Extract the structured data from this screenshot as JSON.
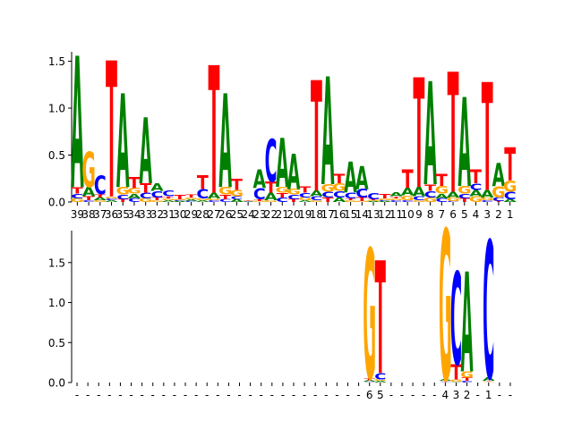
{
  "colors": {
    "A": "#008000",
    "C": "#0000ff",
    "G": "#ffa500",
    "T": "#ff0000"
  },
  "chart_data": [
    {
      "type": "sequence-logo",
      "title": "",
      "xlabel": "",
      "ylabel": "",
      "ylim": [
        0,
        1.6
      ],
      "yticks": [
        "0.0",
        "0.5",
        "1.0",
        "1.5"
      ],
      "xtick_labels": [
        "39",
        "38",
        "37",
        "36",
        "35",
        "34",
        "33",
        "32",
        "31",
        "30",
        "29",
        "28",
        "27",
        "26",
        "25",
        "24",
        "23",
        "22",
        "21",
        "20",
        "19",
        "18",
        "17",
        "16",
        "15",
        "14",
        "13",
        "12",
        "11",
        "10",
        "9",
        "8",
        "7",
        "6",
        "5",
        "4",
        "3",
        "2",
        "1"
      ],
      "positions": [
        {
          "A": 1.4,
          "C": 0.05,
          "G": 0.04,
          "T": 0.07
        },
        {
          "A": 0.1,
          "C": 0.02,
          "G": 0.38,
          "T": 0.04
        },
        {
          "A": 0.03,
          "C": 0.2,
          "G": 0.02,
          "T": 0.03
        },
        {
          "A": 0.02,
          "C": 0.02,
          "G": 0.02,
          "T": 1.45
        },
        {
          "A": 1.0,
          "C": 0.05,
          "G": 0.08,
          "T": 0.03
        },
        {
          "A": 0.05,
          "C": 0.04,
          "G": 0.06,
          "T": 0.12
        },
        {
          "A": 0.7,
          "C": 0.06,
          "G": 0.04,
          "T": 0.1
        },
        {
          "A": 0.08,
          "C": 0.07,
          "G": 0.02,
          "T": 0.03
        },
        {
          "A": 0.02,
          "C": 0.06,
          "G": 0.02,
          "T": 0.02
        },
        {
          "A": 0.01,
          "C": 0.01,
          "G": 0.01,
          "T": 0.05
        },
        {
          "A": 0.02,
          "C": 0.01,
          "G": 0.02,
          "T": 0.03
        },
        {
          "A": 0.02,
          "C": 0.1,
          "G": 0.02,
          "T": 0.15
        },
        {
          "A": 0.06,
          "C": 0.02,
          "G": 0.02,
          "T": 1.36
        },
        {
          "A": 1.0,
          "C": 0.03,
          "G": 0.08,
          "T": 0.05
        },
        {
          "A": 0.03,
          "C": 0.03,
          "G": 0.07,
          "T": 0.12
        },
        {
          "A": 0.005,
          "C": 0.005,
          "G": 0.005,
          "T": 0.005
        },
        {
          "A": 0.2,
          "C": 0.12,
          "G": 0.01,
          "T": 0.02
        },
        {
          "A": 0.08,
          "C": 0.45,
          "G": 0.02,
          "T": 0.12
        },
        {
          "A": 0.52,
          "C": 0.05,
          "G": 0.06,
          "T": 0.05
        },
        {
          "A": 0.38,
          "C": 0.05,
          "G": 0.06,
          "T": 0.03
        },
        {
          "A": 0.02,
          "C": 0.05,
          "G": 0.03,
          "T": 0.07
        },
        {
          "A": 0.06,
          "C": 0.04,
          "G": 0.02,
          "T": 1.18
        },
        {
          "A": 1.15,
          "C": 0.06,
          "G": 0.08,
          "T": 0.05
        },
        {
          "A": 0.05,
          "C": 0.07,
          "G": 0.08,
          "T": 0.1
        },
        {
          "A": 0.33,
          "C": 0.06,
          "G": 0.02,
          "T": 0.02
        },
        {
          "A": 0.25,
          "C": 0.09,
          "G": 0.01,
          "T": 0.04
        },
        {
          "A": 0.01,
          "C": 0.07,
          "G": 0.01,
          "T": 0.01
        },
        {
          "A": 0.01,
          "C": 0.01,
          "G": 0.02,
          "T": 0.05
        },
        {
          "A": 0.04,
          "C": 0.02,
          "G": 0.02,
          "T": 0.02
        },
        {
          "A": 0.08,
          "C": 0.02,
          "G": 0.05,
          "T": 0.2
        },
        {
          "A": 0.1,
          "C": 0.04,
          "G": 0.02,
          "T": 1.17
        },
        {
          "A": 1.1,
          "C": 0.07,
          "G": 0.05,
          "T": 0.07
        },
        {
          "A": 0.05,
          "C": 0.04,
          "G": 0.08,
          "T": 0.13
        },
        {
          "A": 0.06,
          "C": 0.01,
          "G": 0.04,
          "T": 1.28
        },
        {
          "A": 0.95,
          "C": 0.05,
          "G": 0.08,
          "T": 0.04
        },
        {
          "A": 0.07,
          "C": 0.07,
          "G": 0.06,
          "T": 0.15
        },
        {
          "A": 0.08,
          "C": 0.02,
          "G": 0.03,
          "T": 1.15
        },
        {
          "A": 0.25,
          "C": 0.04,
          "G": 0.12,
          "T": 0.01
        },
        {
          "A": 0.03,
          "C": 0.08,
          "G": 0.12,
          "T": 0.35
        }
      ]
    },
    {
      "type": "sequence-logo",
      "title": "",
      "xlabel": "",
      "ylabel": "",
      "ylim": [
        0,
        1.9
      ],
      "yticks": [
        "0.0",
        "0.5",
        "1.0",
        "1.5"
      ],
      "xtick_labels": [
        "-",
        "-",
        "-",
        "-",
        "-",
        "-",
        "-",
        "-",
        "-",
        "-",
        "-",
        "-",
        "-",
        "-",
        "-",
        "-",
        "-",
        "-",
        "-",
        "-",
        "-",
        "-",
        "-",
        "-",
        "-",
        "-",
        "-",
        "6",
        "5",
        "-",
        "-",
        "-",
        "-",
        "-",
        "4",
        "3",
        "2",
        "-",
        "1",
        "-",
        "-"
      ],
      "positions": [
        {
          "A": 0,
          "C": 0,
          "G": 0,
          "T": 0
        },
        {
          "A": 0,
          "C": 0,
          "G": 0,
          "T": 0
        },
        {
          "A": 0,
          "C": 0,
          "G": 0,
          "T": 0
        },
        {
          "A": 0,
          "C": 0,
          "G": 0,
          "T": 0
        },
        {
          "A": 0,
          "C": 0,
          "G": 0,
          "T": 0
        },
        {
          "A": 0,
          "C": 0,
          "G": 0,
          "T": 0
        },
        {
          "A": 0,
          "C": 0,
          "G": 0,
          "T": 0
        },
        {
          "A": 0,
          "C": 0,
          "G": 0,
          "T": 0
        },
        {
          "A": 0,
          "C": 0,
          "G": 0,
          "T": 0
        },
        {
          "A": 0,
          "C": 0,
          "G": 0,
          "T": 0
        },
        {
          "A": 0,
          "C": 0,
          "G": 0,
          "T": 0
        },
        {
          "A": 0,
          "C": 0,
          "G": 0,
          "T": 0
        },
        {
          "A": 0,
          "C": 0,
          "G": 0,
          "T": 0
        },
        {
          "A": 0,
          "C": 0,
          "G": 0,
          "T": 0
        },
        {
          "A": 0,
          "C": 0,
          "G": 0,
          "T": 0
        },
        {
          "A": 0,
          "C": 0,
          "G": 0,
          "T": 0
        },
        {
          "A": 0,
          "C": 0,
          "G": 0,
          "T": 0
        },
        {
          "A": 0,
          "C": 0,
          "G": 0,
          "T": 0
        },
        {
          "A": 0,
          "C": 0,
          "G": 0,
          "T": 0
        },
        {
          "A": 0,
          "C": 0,
          "G": 0,
          "T": 0
        },
        {
          "A": 0,
          "C": 0,
          "G": 0,
          "T": 0
        },
        {
          "A": 0,
          "C": 0,
          "G": 0,
          "T": 0
        },
        {
          "A": 0,
          "C": 0,
          "G": 0,
          "T": 0
        },
        {
          "A": 0,
          "C": 0,
          "G": 0,
          "T": 0
        },
        {
          "A": 0,
          "C": 0,
          "G": 0,
          "T": 0
        },
        {
          "A": 0,
          "C": 0,
          "G": 0,
          "T": 0
        },
        {
          "A": 0,
          "C": 0,
          "G": 0,
          "T": 0
        },
        {
          "A": 0.02,
          "C": 0.01,
          "G": 1.62,
          "T": 0.03
        },
        {
          "A": 0.02,
          "C": 0.08,
          "G": 0.02,
          "T": 1.41
        },
        {
          "A": 0,
          "C": 0,
          "G": 0,
          "T": 0
        },
        {
          "A": 0,
          "C": 0,
          "G": 0,
          "T": 0
        },
        {
          "A": 0,
          "C": 0,
          "G": 0,
          "T": 0
        },
        {
          "A": 0,
          "C": 0,
          "G": 0,
          "T": 0
        },
        {
          "A": 0,
          "C": 0,
          "G": 0,
          "T": 0
        },
        {
          "A": 0.02,
          "C": 0.01,
          "G": 1.88,
          "T": 0.01
        },
        {
          "A": 0.01,
          "C": 1.16,
          "G": 0.03,
          "T": 0.19
        },
        {
          "A": 1.25,
          "C": 0.02,
          "G": 0.08,
          "T": 0.04
        },
        {
          "A": 0,
          "C": 0,
          "G": 0,
          "T": 0
        },
        {
          "A": 0.04,
          "C": 1.72,
          "G": 0.01,
          "T": 0.01
        },
        {
          "A": 0,
          "C": 0,
          "G": 0,
          "T": 0
        },
        {
          "A": 0,
          "C": 0,
          "G": 0,
          "T": 0
        }
      ]
    }
  ]
}
